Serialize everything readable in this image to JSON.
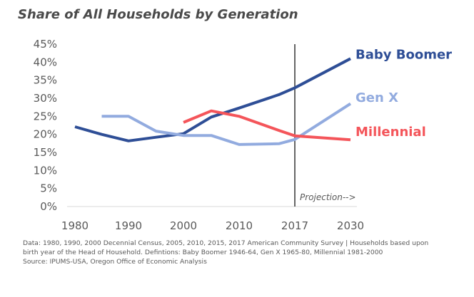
{
  "title": "Share of All Households by Generation",
  "chart_data": {
    "type": "line",
    "title": "Share of All Households by Generation",
    "x_ticks": [
      "1980",
      "1990",
      "2000",
      "2010",
      "2017",
      "2030"
    ],
    "y_ticks": [
      "45%",
      "40%",
      "35%",
      "30%",
      "25%",
      "20%",
      "15%",
      "10%",
      "5%",
      "0%"
    ],
    "ylim": [
      0,
      45
    ],
    "y_unit": "%",
    "grid": false,
    "legend": "labels at line ends (right)",
    "projection_marker": {
      "x": "2017",
      "label": "Projection-->"
    },
    "series": [
      {
        "name": "Baby Boomer",
        "color": "#2E4E96",
        "x": [
          1980,
          1985,
          1990,
          1995,
          2000,
          2005,
          2010,
          2015,
          2017,
          2030
        ],
        "values": [
          22.1,
          20.0,
          18.2,
          19.2,
          20.2,
          24.8,
          27.3,
          31.0,
          32.9,
          41.0
        ]
      },
      {
        "name": "Gen X",
        "color": "#92ABDF",
        "x": [
          1985,
          1990,
          1995,
          2000,
          2005,
          2010,
          2015,
          2017,
          2030
        ],
        "values": [
          25.0,
          25.0,
          20.9,
          19.7,
          19.7,
          17.2,
          17.4,
          18.6,
          28.5
        ]
      },
      {
        "name": "Millennial",
        "color": "#F4555A",
        "x": [
          2000,
          2005,
          2010,
          2015,
          2017,
          2030
        ],
        "values": [
          23.3,
          26.5,
          25.0,
          21.1,
          19.6,
          18.5
        ]
      }
    ]
  },
  "footnote": {
    "line1": "Data: 1980, 1990, 2000 Decennial Census, 2005, 2010, 2015, 2017 American Community Survey  |  Households based upon",
    "line2": "birth year of the Head of Household. Defintions: Baby Boomer 1946-64, Gen X 1965-80, Millennial 1981-2000",
    "line3": "Source: IPUMS-USA, Oregon Office of Economic Analysis"
  }
}
